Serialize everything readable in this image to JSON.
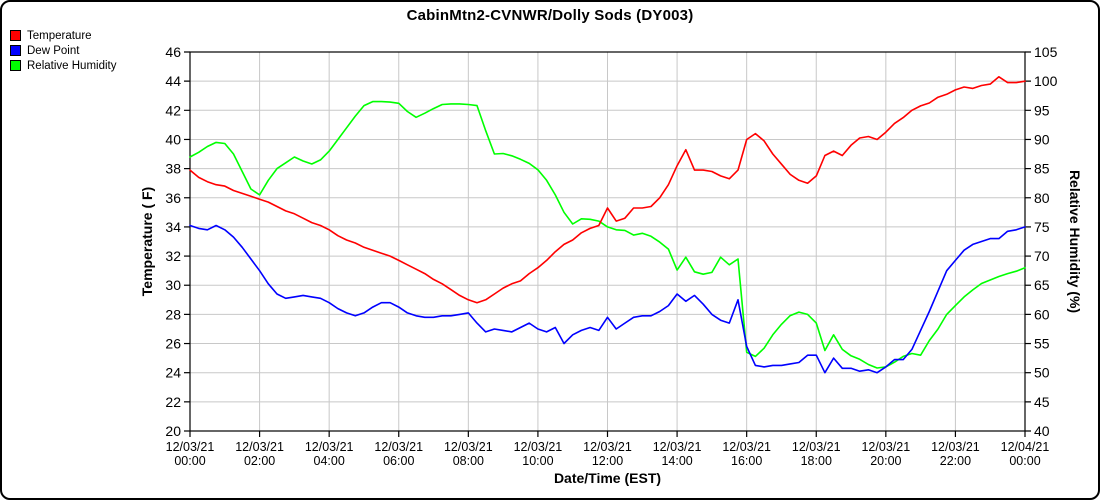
{
  "title": "CabinMtn2-CVNWR/Dolly Sods (DY003)",
  "legend": {
    "items": [
      {
        "label": "Temperature",
        "color": "#ff0000"
      },
      {
        "label": "Dew Point",
        "color": "#0000ff"
      },
      {
        "label": "Relative Humidity",
        "color": "#00ff00"
      }
    ]
  },
  "chart_data": {
    "type": "line",
    "title": "CabinMtn2-CVNWR/Dolly Sods (DY003)",
    "grid": true,
    "legend_position": "top-left",
    "x_axis": {
      "label": "Date/Time (EST)",
      "hours_range": [
        0,
        24
      ],
      "tick_interval_hours": 2,
      "tick_labels": [
        {
          "date": "12/03/21",
          "time": "00:00"
        },
        {
          "date": "12/03/21",
          "time": "02:00"
        },
        {
          "date": "12/03/21",
          "time": "04:00"
        },
        {
          "date": "12/03/21",
          "time": "06:00"
        },
        {
          "date": "12/03/21",
          "time": "08:00"
        },
        {
          "date": "12/03/21",
          "time": "10:00"
        },
        {
          "date": "12/03/21",
          "time": "12:00"
        },
        {
          "date": "12/03/21",
          "time": "14:00"
        },
        {
          "date": "12/03/21",
          "time": "16:00"
        },
        {
          "date": "12/03/21",
          "time": "18:00"
        },
        {
          "date": "12/03/21",
          "time": "20:00"
        },
        {
          "date": "12/03/21",
          "time": "22:00"
        },
        {
          "date": "12/04/21",
          "time": "00:00"
        }
      ]
    },
    "y_left": {
      "label": "Temperature ( F)",
      "min": 20,
      "max": 46,
      "step": 2
    },
    "y_right": {
      "label": "Relative Humidity (%)",
      "min": 40,
      "max": 105,
      "step": 5
    },
    "sample_interval_minutes": 15,
    "series": [
      {
        "name": "Temperature",
        "color": "#ff0000",
        "axis": "left",
        "values": [
          37.9,
          37.4,
          37.1,
          36.9,
          36.8,
          36.5,
          36.3,
          36.1,
          35.9,
          35.7,
          35.4,
          35.1,
          34.9,
          34.6,
          34.3,
          34.1,
          33.8,
          33.4,
          33.1,
          32.9,
          32.6,
          32.4,
          32.2,
          32.0,
          31.7,
          31.4,
          31.1,
          30.8,
          30.4,
          30.1,
          29.7,
          29.3,
          29.0,
          28.8,
          29.0,
          29.4,
          29.8,
          30.1,
          30.3,
          30.8,
          31.2,
          31.7,
          32.3,
          32.8,
          33.1,
          33.6,
          33.9,
          34.1,
          35.3,
          34.4,
          34.6,
          35.3,
          35.3,
          35.4,
          36.0,
          36.9,
          38.2,
          39.3,
          37.9,
          37.9,
          37.8,
          37.5,
          37.3,
          37.9,
          40.0,
          40.4,
          39.9,
          39.0,
          38.3,
          37.6,
          37.2,
          37.0,
          37.5,
          38.9,
          39.2,
          38.9,
          39.6,
          40.1,
          40.2,
          40.0,
          40.5,
          41.1,
          41.5,
          42.0,
          42.3,
          42.5,
          42.9,
          43.1,
          43.4,
          43.6,
          43.5,
          43.7,
          43.8,
          44.3,
          43.9,
          43.9,
          44.0
        ]
      },
      {
        "name": "Dew Point",
        "color": "#0000ff",
        "axis": "left",
        "values": [
          34.1,
          33.9,
          33.8,
          34.1,
          33.8,
          33.3,
          32.6,
          31.8,
          31.0,
          30.1,
          29.4,
          29.1,
          29.2,
          29.3,
          29.2,
          29.1,
          28.8,
          28.4,
          28.1,
          27.9,
          28.1,
          28.5,
          28.8,
          28.8,
          28.5,
          28.1,
          27.9,
          27.8,
          27.8,
          27.9,
          27.9,
          28.0,
          28.1,
          27.4,
          26.8,
          27.0,
          26.9,
          26.8,
          27.1,
          27.4,
          27.0,
          26.8,
          27.1,
          26.0,
          26.6,
          26.9,
          27.1,
          26.9,
          27.8,
          27.0,
          27.4,
          27.8,
          27.9,
          27.9,
          28.2,
          28.6,
          29.4,
          28.9,
          29.3,
          28.7,
          28.0,
          27.6,
          27.4,
          29.0,
          25.8,
          24.5,
          24.4,
          24.5,
          24.5,
          24.6,
          24.7,
          25.2,
          25.2,
          24.0,
          25.0,
          24.3,
          24.3,
          24.1,
          24.2,
          24.0,
          24.4,
          24.9,
          24.9,
          25.6,
          26.9,
          28.2,
          29.6,
          31.0,
          31.7,
          32.4,
          32.8,
          33.0,
          33.2,
          33.2,
          33.7,
          33.8,
          34.0
        ]
      },
      {
        "name": "Relative Humidity",
        "color": "#00ff00",
        "axis": "right",
        "values": [
          87.0,
          87.8,
          88.8,
          89.5,
          89.3,
          87.5,
          84.5,
          81.5,
          80.5,
          83.0,
          85.0,
          86.0,
          87.0,
          86.3,
          85.8,
          86.5,
          88.0,
          90.0,
          92.0,
          94.0,
          95.8,
          96.5,
          96.5,
          96.4,
          96.2,
          94.8,
          93.8,
          94.5,
          95.3,
          96.0,
          96.1,
          96.1,
          96.0,
          95.8,
          91.5,
          87.5,
          87.6,
          87.2,
          86.6,
          85.9,
          84.8,
          83.0,
          80.5,
          77.5,
          75.5,
          76.4,
          76.3,
          76.0,
          75.0,
          74.5,
          74.4,
          73.6,
          73.9,
          73.4,
          72.4,
          71.2,
          67.6,
          69.8,
          67.3,
          66.9,
          67.2,
          69.8,
          68.5,
          69.5,
          53.5,
          52.8,
          54.2,
          56.5,
          58.3,
          59.8,
          60.4,
          60.0,
          58.5,
          53.8,
          56.5,
          54.0,
          52.9,
          52.3,
          51.4,
          50.8,
          51.0,
          51.8,
          52.8,
          53.3,
          53.0,
          55.5,
          57.5,
          60.0,
          61.5,
          63.0,
          64.2,
          65.3,
          65.9,
          66.5,
          67.0,
          67.4,
          68.0
        ]
      }
    ]
  },
  "style": {
    "grid_color": "#c8c8c8",
    "axis_color": "#000000",
    "background": "#ffffff"
  }
}
